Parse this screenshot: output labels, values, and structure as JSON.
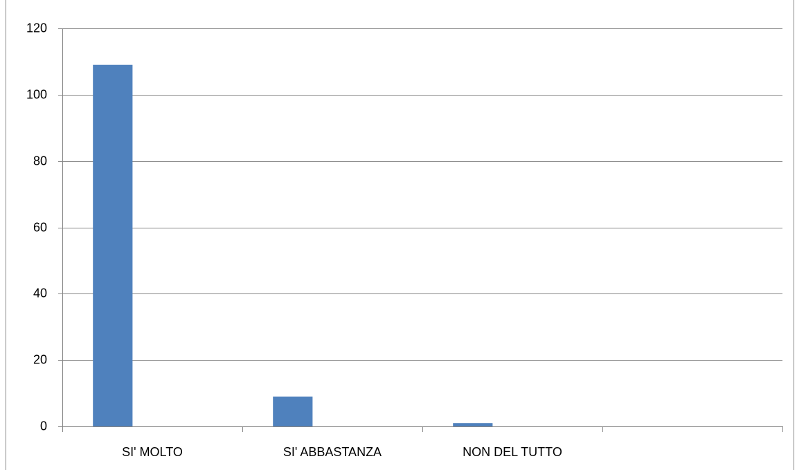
{
  "chart_data": {
    "type": "bar",
    "categories": [
      "SI' MOLTO",
      "SI' ABBASTANZA",
      "NON DEL TUTTO",
      null
    ],
    "values": [
      109,
      9,
      1,
      null
    ],
    "color": "#4f81bd",
    "ylim": [
      0,
      120
    ],
    "yticks": [
      0,
      20,
      40,
      60,
      80,
      100,
      120
    ],
    "grid": true
  }
}
